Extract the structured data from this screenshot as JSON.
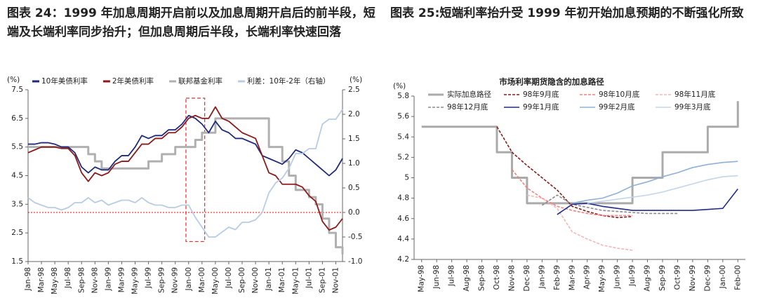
{
  "chart_data": [
    {
      "type": "line",
      "title": "图表 24：1999 年加息周期开启前以及加息周期开启后的前半段，短端及长端利率同步抬升；但加息周期后半段，长端利率快速回落",
      "ylabel": "(%)",
      "y2label": "(%)",
      "categories": [
        "Jan-98",
        null,
        "Mar-98",
        null,
        "May-98",
        null,
        "Jul-98",
        null,
        "Sep-98",
        null,
        "Nov-98",
        null,
        "Jan-99",
        null,
        "Mar-99",
        null,
        "May-99",
        null,
        "Jul-99",
        null,
        "Sep-99",
        null,
        "Nov-99",
        null,
        "Jan-00",
        null,
        "Mar-00",
        null,
        "May-00",
        null,
        "Jul-00",
        null,
        "Sep-00",
        null,
        "Nov-00",
        null,
        "Jan-01",
        null,
        "Mar-01",
        null,
        "May-01",
        null,
        "Jul-01",
        null,
        "Sep-01",
        null,
        "Nov-01",
        null
      ],
      "ylim": [
        1.5,
        7.5
      ],
      "yticks": [
        1.5,
        2.5,
        3.5,
        4.5,
        5.5,
        6.5,
        7.5
      ],
      "y2lim": [
        -1,
        2.5
      ],
      "y2ticks": [
        {
          "value": -1,
          "label": "-1.0"
        },
        -0.5,
        {
          "value": 0,
          "label": "0.0"
        },
        0.5,
        {
          "value": 1,
          "label": "1.0"
        },
        1.5,
        {
          "value": 2,
          "label": "2.0"
        },
        2.5
      ],
      "legend": "top",
      "reference_lines": [
        {
          "axis": "y2",
          "value": 0,
          "color": "#ff0000"
        }
      ],
      "series": [
        {
          "name": "10年美债利率",
          "color": "#1f2a7a",
          "values": [
            5.6,
            5.6,
            5.65,
            5.65,
            5.6,
            5.5,
            5.5,
            5.3,
            4.8,
            4.6,
            4.8,
            4.7,
            4.7,
            5.0,
            5.2,
            5.2,
            5.5,
            5.9,
            5.8,
            5.9,
            5.9,
            6.1,
            6.1,
            6.3,
            6.6,
            6.5,
            6.3,
            6.0,
            6.4,
            6.1,
            6.0,
            5.8,
            5.8,
            5.7,
            5.6,
            5.2,
            5.1,
            5.0,
            4.9,
            5.1,
            5.4,
            5.3,
            5.1,
            4.9,
            4.7,
            4.5,
            4.7,
            5.1
          ]
        },
        {
          "name": "2年美债利率",
          "color": "#8b1a1a",
          "values": [
            5.3,
            5.4,
            5.5,
            5.5,
            5.5,
            5.45,
            5.45,
            5.2,
            4.6,
            4.3,
            4.6,
            4.5,
            4.6,
            4.9,
            5.0,
            5.0,
            5.3,
            5.6,
            5.6,
            5.8,
            5.8,
            6.0,
            6.0,
            6.2,
            6.5,
            6.6,
            6.5,
            6.5,
            6.9,
            6.5,
            6.4,
            6.2,
            6.0,
            5.9,
            5.8,
            5.2,
            4.6,
            4.5,
            4.2,
            4.2,
            4.2,
            4.1,
            3.8,
            3.6,
            2.9,
            2.6,
            2.7,
            3.0
          ]
        },
        {
          "name": "联邦基金利率",
          "color": "#b0b0b0",
          "step": true,
          "values": [
            5.5,
            5.5,
            5.5,
            5.5,
            5.5,
            5.5,
            5.5,
            5.5,
            5.5,
            5.25,
            5.0,
            4.75,
            4.75,
            4.75,
            4.75,
            4.75,
            4.75,
            4.75,
            5.0,
            5.0,
            5.25,
            5.25,
            5.5,
            5.5,
            5.5,
            5.75,
            6.0,
            6.0,
            6.5,
            6.5,
            6.5,
            6.5,
            6.5,
            6.5,
            6.5,
            6.5,
            5.5,
            5.5,
            5.0,
            4.5,
            4.0,
            4.0,
            3.75,
            3.5,
            3.0,
            2.5,
            2.0,
            1.75
          ]
        },
        {
          "name": "利差：10年-2年（右轴）",
          "color": "#b8cce4",
          "axis": "y2",
          "values": [
            0.3,
            0.2,
            0.15,
            0.1,
            0.1,
            0.05,
            0.1,
            0.2,
            0.2,
            0.3,
            0.2,
            0.25,
            0.15,
            0.2,
            0.25,
            0.25,
            0.2,
            0.3,
            0.2,
            0.15,
            0.15,
            0.1,
            0.1,
            0.15,
            0.15,
            -0.1,
            -0.3,
            -0.5,
            -0.5,
            -0.4,
            -0.3,
            -0.35,
            -0.2,
            -0.2,
            -0.15,
            0.0,
            0.4,
            0.6,
            0.7,
            0.9,
            1.2,
            1.2,
            1.3,
            1.3,
            1.8,
            1.9,
            1.9,
            2.1
          ]
        }
      ]
    },
    {
      "type": "line",
      "title": "图表 25:短端利率抬升受 1999 年初开始加息预期的不断强化所致",
      "subtitle": "市场利率期货隐含的加息路径",
      "ylabel": "(%)",
      "categories": [
        "May-98",
        "Jun-98",
        "Jul-98",
        "Aug-98",
        "Sep-98",
        "Oct-98",
        "Nov-98",
        "Dec-98",
        "Jan-99",
        "Feb-99",
        "Mar-99",
        "Apr-99",
        "May-99",
        "Jun-99",
        "Jul-99",
        "Aug-99",
        "Sep-99",
        "Oct-99",
        "Nov-99",
        "Dec-99",
        "Jan-00",
        "Feb-00"
      ],
      "ylim": [
        4.2,
        5.8
      ],
      "yticks": [
        4.2,
        4.4,
        4.6,
        4.8,
        5,
        5.2,
        5.4,
        5.6,
        5.8
      ],
      "legend": "upper left",
      "series": [
        {
          "name": "实际加息路径",
          "color": "#aaaaaa",
          "step": true,
          "values": [
            5.5,
            5.5,
            5.5,
            5.5,
            5.5,
            5.25,
            5.0,
            4.75,
            4.75,
            4.75,
            4.75,
            4.75,
            4.75,
            4.75,
            5.0,
            5.0,
            5.25,
            5.25,
            5.25,
            5.5,
            5.5,
            5.75
          ]
        },
        {
          "name": "98年9月底",
          "color": "#8b1a1a",
          "dashed": true,
          "values": [
            null,
            null,
            null,
            null,
            null,
            5.5,
            5.25,
            5.12,
            5.0,
            4.88,
            4.72,
            4.67,
            4.63,
            4.61,
            4.62,
            null,
            null,
            null,
            null,
            null,
            null,
            null
          ]
        },
        {
          "name": "98年10月底",
          "color": "#f08080",
          "dashed": true,
          "values": [
            null,
            null,
            null,
            null,
            null,
            null,
            5.08,
            4.9,
            4.8,
            4.72,
            4.68,
            4.65,
            4.63,
            4.63,
            4.63,
            null,
            null,
            null,
            null,
            null,
            null,
            null
          ]
        },
        {
          "name": "98年11月底",
          "color": "#f4b6b6",
          "dashed": true,
          "values": [
            null,
            null,
            null,
            null,
            null,
            null,
            null,
            4.83,
            4.8,
            4.7,
            4.47,
            4.4,
            4.34,
            4.31,
            4.29,
            null,
            null,
            null,
            null,
            null,
            null,
            null
          ]
        },
        {
          "name": "98年12月底",
          "color": "#8c8c8c",
          "dashed": true,
          "values": [
            null,
            null,
            null,
            null,
            null,
            null,
            null,
            null,
            4.73,
            4.83,
            4.74,
            4.71,
            4.68,
            4.67,
            4.66,
            4.65,
            4.65,
            4.65,
            null,
            null,
            null,
            null
          ]
        },
        {
          "name": "99年1月底",
          "color": "#1f2a8a",
          "values": [
            null,
            null,
            null,
            null,
            null,
            null,
            null,
            null,
            null,
            4.64,
            4.74,
            4.75,
            4.72,
            4.7,
            4.68,
            4.68,
            4.68,
            4.68,
            4.68,
            4.69,
            4.7,
            4.89
          ]
        },
        {
          "name": "99年2月底",
          "color": "#8fb0d6",
          "values": [
            null,
            null,
            null,
            null,
            null,
            null,
            null,
            null,
            null,
            null,
            4.75,
            4.78,
            4.8,
            4.85,
            4.92,
            4.96,
            5.01,
            5.05,
            5.1,
            5.13,
            5.15,
            5.16
          ]
        },
        {
          "name": "99年3月底",
          "color": "#c3d5ea",
          "values": [
            null,
            null,
            null,
            null,
            null,
            null,
            null,
            null,
            null,
            null,
            null,
            4.75,
            4.77,
            4.79,
            4.81,
            4.83,
            4.86,
            4.9,
            4.94,
            4.98,
            5.01,
            5.02
          ]
        }
      ]
    }
  ]
}
